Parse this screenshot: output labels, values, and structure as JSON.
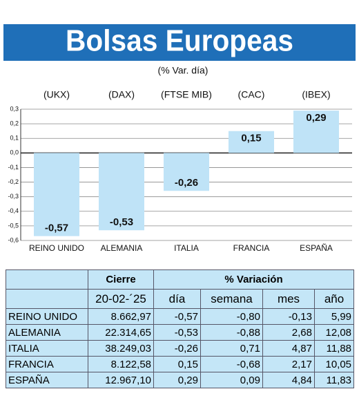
{
  "chart_data": {
    "type": "bar",
    "title": "Bolsas Europeas",
    "subtitle": "(% Var. día)",
    "tickers": [
      "(UKX)",
      "(DAX)",
      "(FTSE MIB)",
      "(CAC)",
      "(IBEX)"
    ],
    "categories": [
      "REINO UNIDO",
      "ALEMANIA",
      "ITALIA",
      "FRANCIA",
      "ESPAÑA"
    ],
    "values": [
      -0.57,
      -0.53,
      -0.26,
      0.15,
      0.29
    ],
    "value_labels": [
      "-0,57",
      "-0,53",
      "-0,26",
      "0,15",
      "0,29"
    ],
    "color": "#bfe3f7",
    "ylim": [
      -0.6,
      0.3
    ],
    "yticks": [
      {
        "value": 0.3,
        "label": "0,3"
      },
      {
        "value": 0.2,
        "label": "0,2"
      },
      {
        "value": 0.1,
        "label": "0,1"
      },
      {
        "value": 0,
        "label": "0,0"
      },
      {
        "value": -0.1,
        "label": "-0,1"
      },
      {
        "value": -0.2,
        "label": "-0,2"
      },
      {
        "value": -0.3,
        "label": "-0,3"
      },
      {
        "value": -0.4,
        "label": "-0,4"
      },
      {
        "value": -0.5,
        "label": "-0,5"
      },
      {
        "value": -0.6,
        "label": "-0,6"
      }
    ],
    "grid": true
  },
  "table": {
    "header": [
      "Cierre",
      "% Variación"
    ],
    "columns": [
      "20-02-´25",
      "día",
      "semana",
      "mes",
      "año"
    ],
    "rows": [
      [
        "REINO UNIDO",
        "8.662,97",
        "-0,57",
        "-0,80",
        "-0,13",
        "5,99"
      ],
      [
        "ALEMANIA",
        "22.314,65",
        "-0,53",
        "-0,88",
        "2,68",
        "12,08"
      ],
      [
        "ITALIA",
        "38.249,03",
        "-0,26",
        "0,71",
        "4,87",
        "11,88"
      ],
      [
        "FRANCIA",
        "8.122,58",
        "0,15",
        "-0,68",
        "2,17",
        "10,05"
      ],
      [
        "ESPAÑA",
        "12.967,10",
        "0,29",
        "0,09",
        "4,84",
        "11,83"
      ]
    ]
  }
}
